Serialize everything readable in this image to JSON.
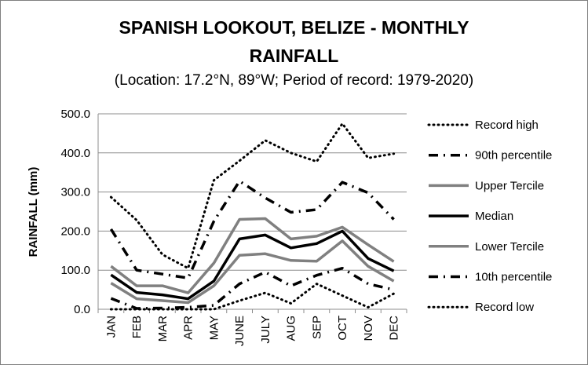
{
  "chart_data": {
    "type": "line",
    "title_line1": "SPANISH LOOKOUT, BELIZE - MONTHLY",
    "title_line2": "RAINFALL",
    "subtitle": "(Location: 17.2°N, 89°W; Period of record: 1979-2020)",
    "ylabel": "RAINFALL (mm)",
    "xlabel": "",
    "ylim": [
      0,
      500
    ],
    "yticks": [
      "0.0",
      "100.0",
      "200.0",
      "300.0",
      "400.0",
      "500.0"
    ],
    "categories": [
      "JAN",
      "FEB",
      "MAR",
      "APR",
      "MAY",
      "JUNE",
      "JULY",
      "AUG",
      "SEP",
      "OCT",
      "NOV",
      "DEC"
    ],
    "grid": "horizontal",
    "legend_position": "right",
    "series": [
      {
        "name": "Record high",
        "color": "#000000",
        "style": "dotted",
        "values": [
          287,
          228,
          140,
          105,
          330,
          380,
          432,
          400,
          378,
          475,
          387,
          398
        ]
      },
      {
        "name": "90th percentile",
        "color": "#000000",
        "style": "dashdot",
        "values": [
          205,
          100,
          90,
          80,
          225,
          328,
          285,
          248,
          255,
          325,
          298,
          230
        ]
      },
      {
        "name": "Upper Tercile",
        "color": "#808080",
        "style": "solid",
        "values": [
          110,
          60,
          60,
          42,
          118,
          230,
          232,
          180,
          187,
          210,
          165,
          122
        ]
      },
      {
        "name": "Median",
        "color": "#000000",
        "style": "solid",
        "values": [
          88,
          43,
          37,
          27,
          72,
          180,
          190,
          157,
          168,
          200,
          130,
          98
        ]
      },
      {
        "name": "Lower Tercile",
        "color": "#808080",
        "style": "solid",
        "values": [
          67,
          27,
          22,
          17,
          60,
          138,
          142,
          125,
          123,
          175,
          110,
          72
        ]
      },
      {
        "name": "10th percentile",
        "color": "#000000",
        "style": "dashdot",
        "values": [
          28,
          2,
          3,
          5,
          10,
          65,
          95,
          60,
          87,
          105,
          65,
          50
        ]
      },
      {
        "name": "Record low",
        "color": "#000000",
        "style": "dotted",
        "values": [
          0,
          0,
          0,
          0,
          0,
          22,
          42,
          15,
          65,
          35,
          5,
          40
        ]
      }
    ]
  }
}
